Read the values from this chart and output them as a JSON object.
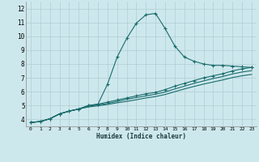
{
  "xlabel": "Humidex (Indice chaleur)",
  "bg_color": "#cde8ed",
  "grid_color": "#b0cdd4",
  "line_color": "#1a6b6b",
  "xlim": [
    -0.5,
    23.5
  ],
  "ylim": [
    3.5,
    12.5
  ],
  "yticks": [
    4,
    5,
    6,
    7,
    8,
    9,
    10,
    11,
    12
  ],
  "xticks": [
    0,
    1,
    2,
    3,
    4,
    5,
    6,
    7,
    8,
    9,
    10,
    11,
    12,
    13,
    14,
    15,
    16,
    17,
    18,
    19,
    20,
    21,
    22,
    23
  ],
  "line1_x": [
    0,
    1,
    2,
    3,
    4,
    5,
    6,
    7,
    8,
    9,
    10,
    11,
    12,
    13,
    14,
    15,
    16,
    17,
    18,
    19,
    20,
    21,
    22,
    23
  ],
  "line1_y": [
    3.78,
    3.85,
    4.05,
    4.4,
    4.6,
    4.75,
    5.0,
    5.1,
    6.55,
    8.5,
    9.85,
    10.95,
    11.55,
    11.65,
    10.55,
    9.3,
    8.5,
    8.2,
    8.0,
    7.9,
    7.9,
    7.85,
    7.8,
    7.75
  ],
  "line2_x": [
    0,
    1,
    2,
    3,
    4,
    5,
    6,
    7,
    8,
    9,
    10,
    11,
    12,
    13,
    14,
    15,
    16,
    17,
    18,
    19,
    20,
    21,
    22,
    23
  ],
  "line2_y": [
    3.78,
    3.85,
    4.05,
    4.4,
    4.6,
    4.75,
    5.0,
    5.1,
    5.25,
    5.4,
    5.55,
    5.7,
    5.85,
    5.95,
    6.15,
    6.4,
    6.6,
    6.8,
    7.0,
    7.15,
    7.3,
    7.5,
    7.65,
    7.75
  ],
  "line3_x": [
    0,
    1,
    2,
    3,
    4,
    5,
    6,
    7,
    8,
    9,
    10,
    11,
    12,
    13,
    14,
    15,
    16,
    17,
    18,
    19,
    20,
    21,
    22,
    23
  ],
  "line3_y": [
    3.78,
    3.85,
    4.05,
    4.4,
    4.6,
    4.75,
    4.95,
    5.05,
    5.15,
    5.3,
    5.45,
    5.58,
    5.7,
    5.82,
    5.98,
    6.2,
    6.4,
    6.6,
    6.78,
    6.95,
    7.1,
    7.28,
    7.42,
    7.52
  ],
  "line4_x": [
    0,
    1,
    2,
    3,
    4,
    5,
    6,
    7,
    8,
    9,
    10,
    11,
    12,
    13,
    14,
    15,
    16,
    17,
    18,
    19,
    20,
    21,
    22,
    23
  ],
  "line4_y": [
    3.78,
    3.85,
    4.05,
    4.4,
    4.6,
    4.75,
    4.9,
    4.98,
    5.08,
    5.2,
    5.3,
    5.42,
    5.55,
    5.65,
    5.8,
    6.0,
    6.2,
    6.38,
    6.55,
    6.7,
    6.85,
    7.02,
    7.15,
    7.25
  ]
}
